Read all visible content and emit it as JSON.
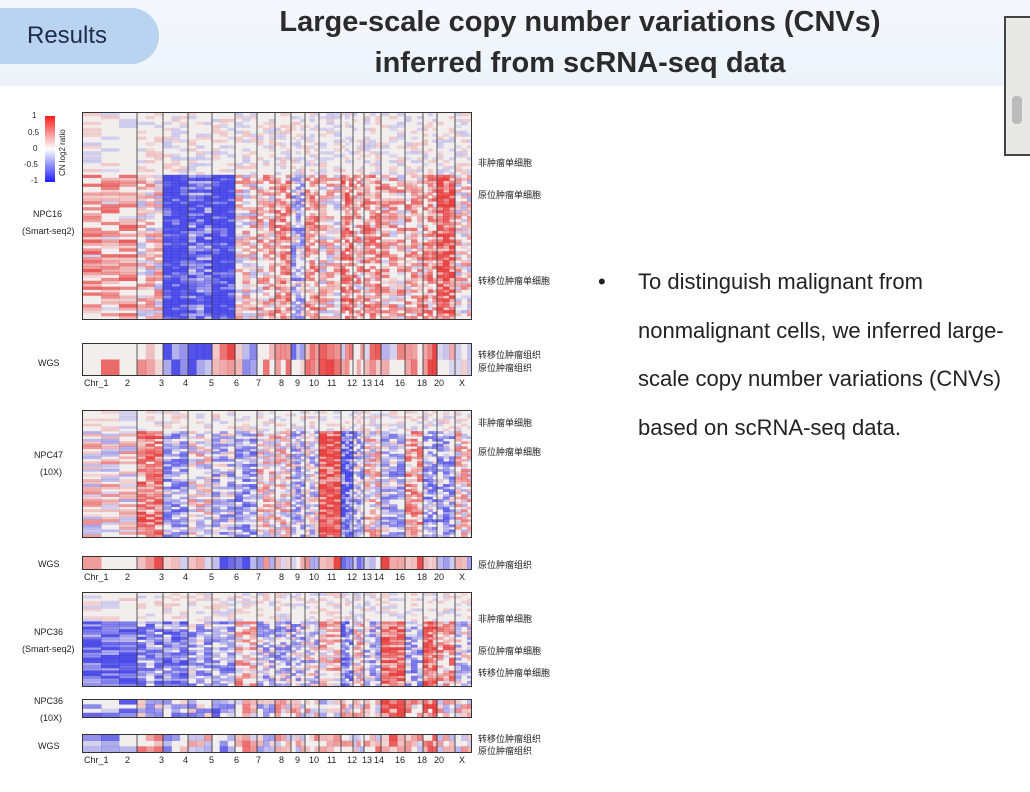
{
  "header": {
    "tab_label": "Results",
    "title_line1": "Large-scale copy number variations (CNVs)",
    "title_line2": "inferred from scRNA-seq data"
  },
  "figure": {
    "legend": {
      "title": "CN log2 ratio",
      "ticks": [
        "1",
        "0.5",
        "0",
        "-0.5",
        "-1"
      ],
      "colors": [
        "#ff1d1d",
        "#ffffff",
        "#1d1dff"
      ]
    },
    "samples": {
      "npc16": "NPC16",
      "npc16_platform": "(Smart-seq2)",
      "wgs": "WGS",
      "npc47": "NPC47",
      "npc47_platform": "(10X)",
      "npc36": "NPC36",
      "npc36_platform": "(Smart-seq2)",
      "npc36b": "NPC36",
      "npc36b_platform": "(10X)"
    },
    "row_labels": {
      "non_tumor": "非肿瘤单细胞",
      "primary_tumor": "原位肿瘤单细胞",
      "metastatic_tumor": "转移位肿瘤单细胞",
      "metastatic_tissue": "转移位肿瘤组织",
      "primary_tissue": "原位肿瘤组织"
    },
    "chromosomes": [
      "Chr_1",
      "2",
      "3",
      "4",
      "5",
      "6",
      "7",
      "8",
      "9",
      "10",
      "11",
      "12",
      "13",
      "14",
      "16",
      "18",
      "20",
      "X"
    ]
  },
  "bullet": {
    "text": "To distinguish malignant from nonmalignant cells, we inferred large-scale copy number variations (CNVs) based on scRNA-seq data."
  }
}
